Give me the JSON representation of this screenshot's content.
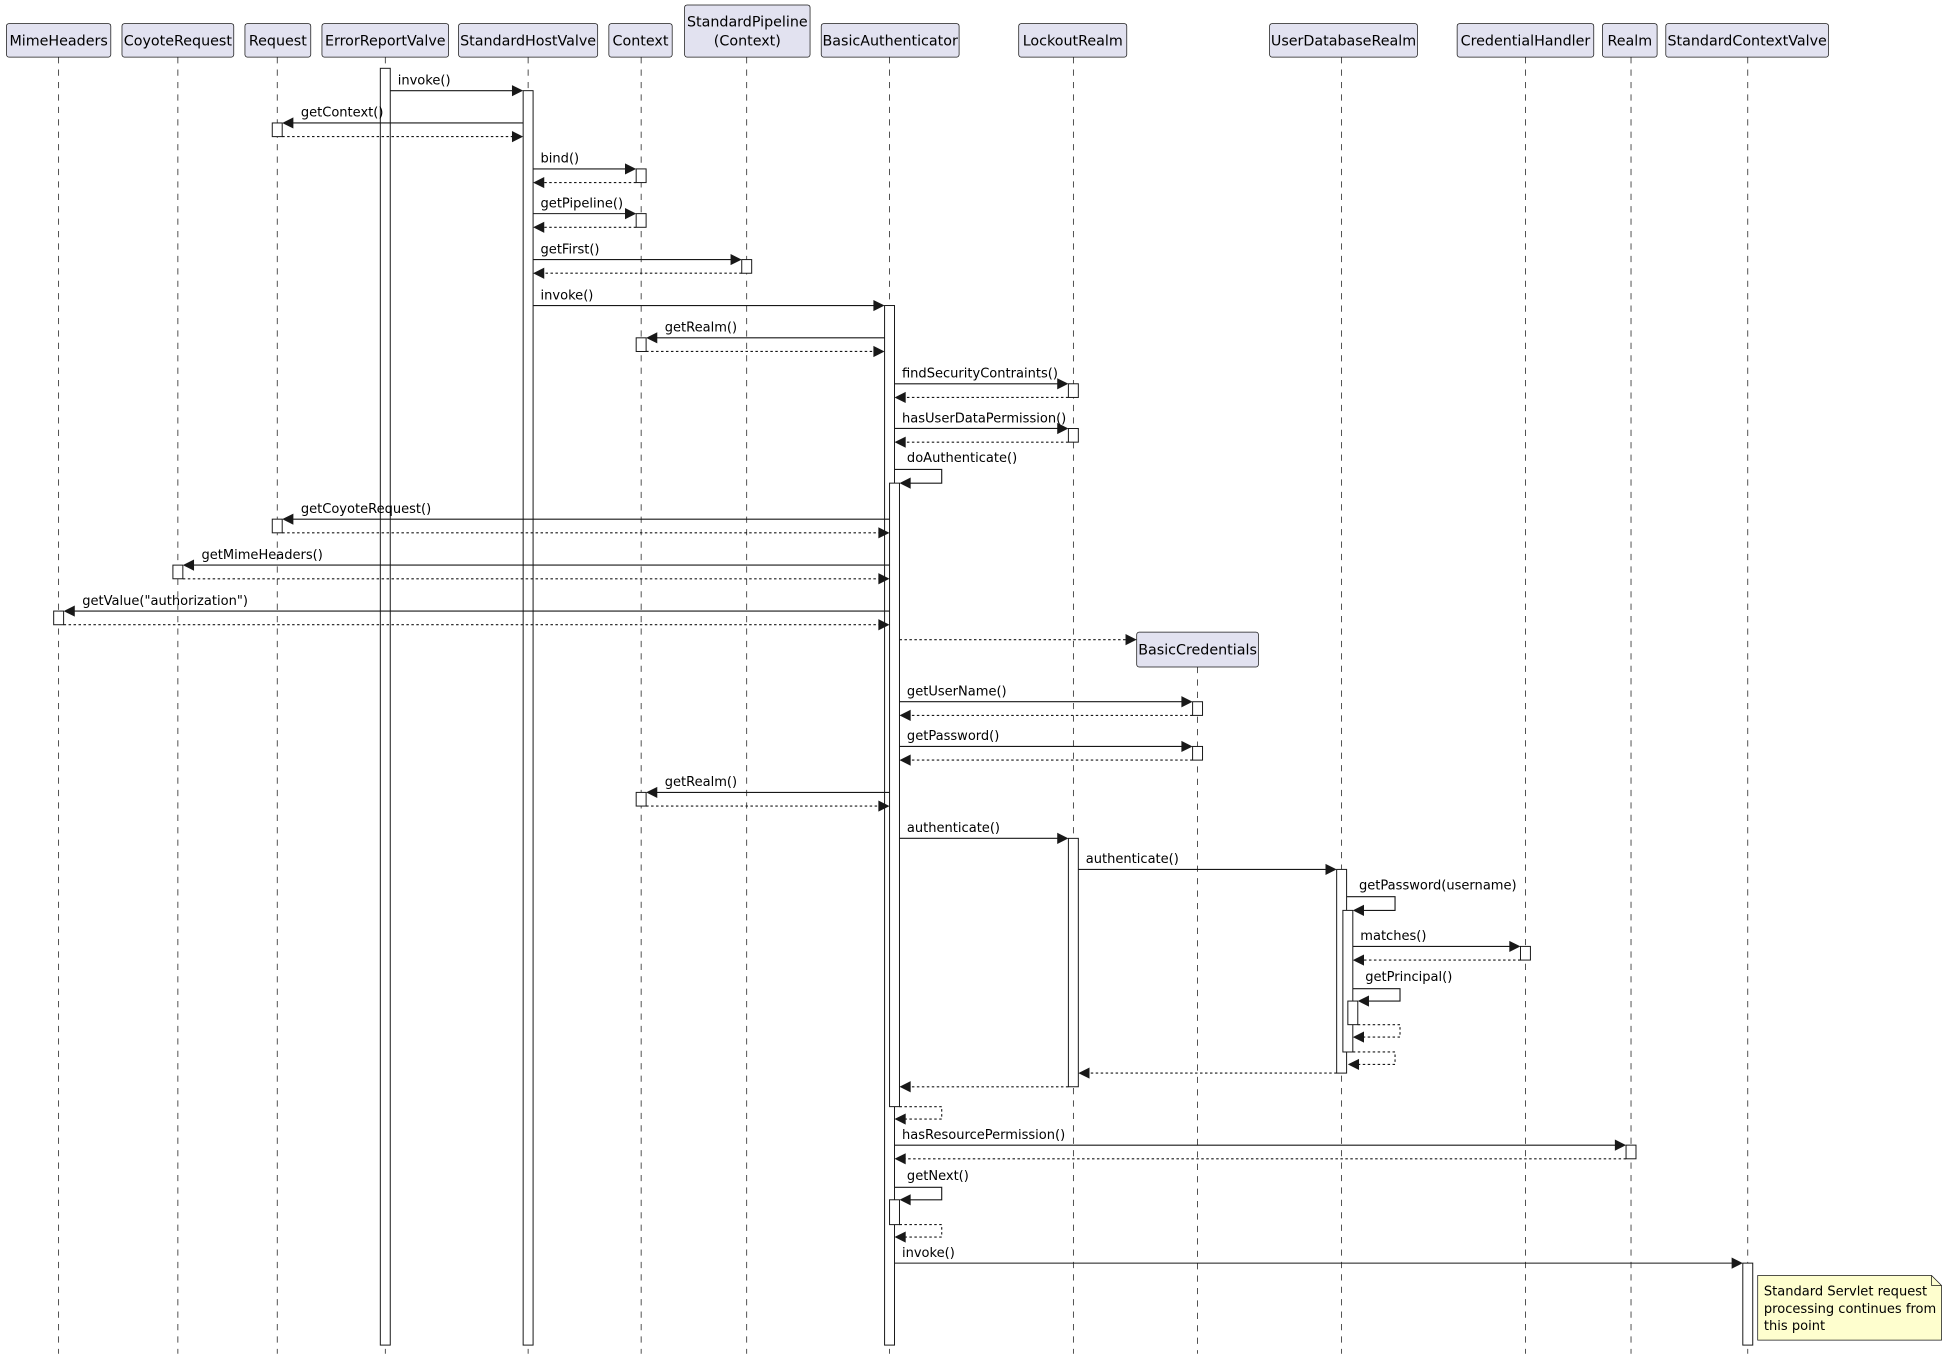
{
  "diagram_type": "sequence",
  "participants": [
    {
      "id": "MimeHeaders",
      "label": "MimeHeaders"
    },
    {
      "id": "CoyoteRequest",
      "label": "CoyoteRequest"
    },
    {
      "id": "Request",
      "label": "Request"
    },
    {
      "id": "ErrorReportValve",
      "label": "ErrorReportValve"
    },
    {
      "id": "StandardHostValve",
      "label": "StandardHostValve"
    },
    {
      "id": "Context",
      "label": "Context"
    },
    {
      "id": "StandardPipeline",
      "label": "StandardPipeline\n(Context)"
    },
    {
      "id": "BasicAuthenticator",
      "label": "BasicAuthenticator"
    },
    {
      "id": "LockoutRealm",
      "label": "LockoutRealm"
    },
    {
      "id": "BasicCredentials",
      "label": "BasicCredentials"
    },
    {
      "id": "UserDatabaseRealm",
      "label": "UserDatabaseRealm"
    },
    {
      "id": "CredentialHandler",
      "label": "CredentialHandler"
    },
    {
      "id": "Realm",
      "label": "Realm"
    },
    {
      "id": "StandardContextValve",
      "label": "StandardContextValve"
    }
  ],
  "messages": [
    {
      "from": "ErrorReportValve",
      "to": "StandardHostValve",
      "label": "invoke()",
      "type": "call"
    },
    {
      "from": "StandardHostValve",
      "to": "Request",
      "label": "getContext()",
      "type": "call"
    },
    {
      "from": "Request",
      "to": "StandardHostValve",
      "label": "",
      "type": "return"
    },
    {
      "from": "StandardHostValve",
      "to": "Context",
      "label": "bind()",
      "type": "call"
    },
    {
      "from": "Context",
      "to": "StandardHostValve",
      "label": "",
      "type": "return"
    },
    {
      "from": "StandardHostValve",
      "to": "Context",
      "label": "getPipeline()",
      "type": "call"
    },
    {
      "from": "Context",
      "to": "StandardHostValve",
      "label": "",
      "type": "return"
    },
    {
      "from": "StandardHostValve",
      "to": "StandardPipeline",
      "label": "getFirst()",
      "type": "call"
    },
    {
      "from": "StandardPipeline",
      "to": "StandardHostValve",
      "label": "",
      "type": "return"
    },
    {
      "from": "StandardHostValve",
      "to": "BasicAuthenticator",
      "label": "invoke()",
      "type": "call"
    },
    {
      "from": "BasicAuthenticator",
      "to": "Context",
      "label": "getRealm()",
      "type": "call"
    },
    {
      "from": "Context",
      "to": "BasicAuthenticator",
      "label": "",
      "type": "return"
    },
    {
      "from": "BasicAuthenticator",
      "to": "LockoutRealm",
      "label": "findSecurityContraints()",
      "type": "call"
    },
    {
      "from": "LockoutRealm",
      "to": "BasicAuthenticator",
      "label": "",
      "type": "return"
    },
    {
      "from": "BasicAuthenticator",
      "to": "LockoutRealm",
      "label": "hasUserDataPermission()",
      "type": "call"
    },
    {
      "from": "LockoutRealm",
      "to": "BasicAuthenticator",
      "label": "",
      "type": "return"
    },
    {
      "from": "BasicAuthenticator",
      "to": "BasicAuthenticator",
      "label": "doAuthenticate()",
      "type": "self"
    },
    {
      "from": "BasicAuthenticator",
      "to": "Request",
      "label": "getCoyoteRequest()",
      "type": "call"
    },
    {
      "from": "Request",
      "to": "BasicAuthenticator",
      "label": "",
      "type": "return"
    },
    {
      "from": "BasicAuthenticator",
      "to": "CoyoteRequest",
      "label": "getMimeHeaders()",
      "type": "call"
    },
    {
      "from": "CoyoteRequest",
      "to": "BasicAuthenticator",
      "label": "",
      "type": "return"
    },
    {
      "from": "BasicAuthenticator",
      "to": "MimeHeaders",
      "label": "getValue(\"authorization\")",
      "type": "call"
    },
    {
      "from": "MimeHeaders",
      "to": "BasicAuthenticator",
      "label": "",
      "type": "return"
    },
    {
      "from": "BasicAuthenticator",
      "to": "BasicCredentials",
      "label": "",
      "type": "create"
    },
    {
      "from": "BasicAuthenticator",
      "to": "BasicCredentials",
      "label": "getUserName()",
      "type": "call"
    },
    {
      "from": "BasicCredentials",
      "to": "BasicAuthenticator",
      "label": "",
      "type": "return"
    },
    {
      "from": "BasicAuthenticator",
      "to": "BasicCredentials",
      "label": "getPassword()",
      "type": "call"
    },
    {
      "from": "BasicCredentials",
      "to": "BasicAuthenticator",
      "label": "",
      "type": "return"
    },
    {
      "from": "BasicAuthenticator",
      "to": "Context",
      "label": "getRealm()",
      "type": "call"
    },
    {
      "from": "Context",
      "to": "BasicAuthenticator",
      "label": "",
      "type": "return"
    },
    {
      "from": "BasicAuthenticator",
      "to": "LockoutRealm",
      "label": "authenticate()",
      "type": "call"
    },
    {
      "from": "LockoutRealm",
      "to": "UserDatabaseRealm",
      "label": "authenticate()",
      "type": "call"
    },
    {
      "from": "UserDatabaseRealm",
      "to": "UserDatabaseRealm",
      "label": "getPassword(username)",
      "type": "self"
    },
    {
      "from": "UserDatabaseRealm",
      "to": "CredentialHandler",
      "label": "matches()",
      "type": "call"
    },
    {
      "from": "CredentialHandler",
      "to": "UserDatabaseRealm",
      "label": "",
      "type": "return"
    },
    {
      "from": "UserDatabaseRealm",
      "to": "UserDatabaseRealm",
      "label": "getPrincipal()",
      "type": "self"
    },
    {
      "from": "UserDatabaseRealm",
      "to": "UserDatabaseRealm",
      "label": "",
      "type": "self-return"
    },
    {
      "from": "UserDatabaseRealm",
      "to": "UserDatabaseRealm",
      "label": "",
      "type": "self-return"
    },
    {
      "from": "UserDatabaseRealm",
      "to": "LockoutRealm",
      "label": "",
      "type": "return"
    },
    {
      "from": "LockoutRealm",
      "to": "BasicAuthenticator",
      "label": "",
      "type": "return"
    },
    {
      "from": "BasicAuthenticator",
      "to": "BasicAuthenticator",
      "label": "",
      "type": "self-return"
    },
    {
      "from": "BasicAuthenticator",
      "to": "Realm",
      "label": "hasResourcePermission()",
      "type": "call"
    },
    {
      "from": "Realm",
      "to": "BasicAuthenticator",
      "label": "",
      "type": "return"
    },
    {
      "from": "BasicAuthenticator",
      "to": "BasicAuthenticator",
      "label": "getNext()",
      "type": "self"
    },
    {
      "from": "BasicAuthenticator",
      "to": "BasicAuthenticator",
      "label": "",
      "type": "self-return"
    },
    {
      "from": "BasicAuthenticator",
      "to": "StandardContextValve",
      "label": "invoke()",
      "type": "call"
    }
  ],
  "note": {
    "attached_to": "StandardContextValve",
    "lines": [
      "Standard Servlet request",
      "processing continues from",
      "this point"
    ]
  },
  "colors": {
    "participant_fill": "#e2e2f0",
    "note_fill": "#fefece",
    "line": "#181818"
  }
}
